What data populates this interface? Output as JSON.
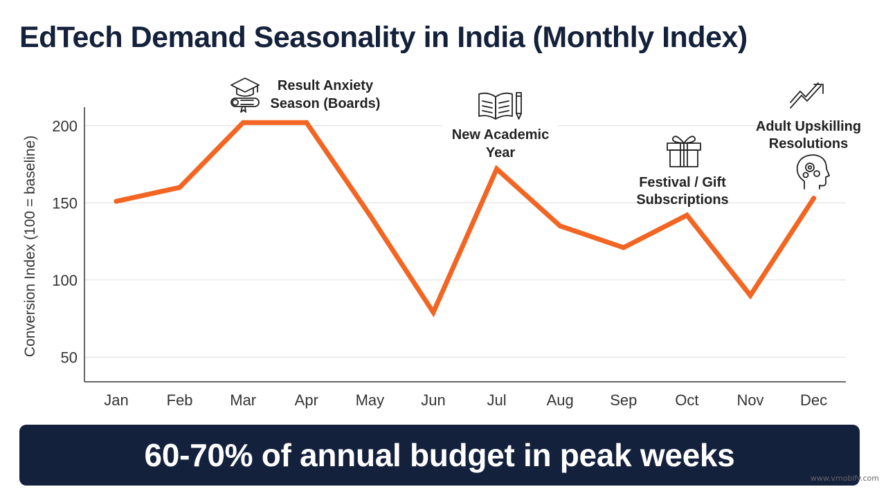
{
  "title": "EdTech Demand Seasonality in India (Monthly Index)",
  "banner": "60-70% of annual budget in peak weeks",
  "watermark": "www.vmobify.com",
  "colors": {
    "line": "#f26522",
    "title": "#14213a",
    "banner_bg": "#14213d",
    "grid": "#dddddd",
    "axis": "#333333"
  },
  "chart_data": {
    "type": "line",
    "title": "EdTech Demand Seasonality in India (Monthly Index)",
    "xlabel": "",
    "ylabel": "Conversion Index (100 = baseline)",
    "categories": [
      "Jan",
      "Feb",
      "Mar",
      "Apr",
      "May",
      "Jun",
      "Jul",
      "Aug",
      "Sep",
      "Oct",
      "Nov",
      "Dec"
    ],
    "series": [
      {
        "values": [
          151,
          160,
          202,
          202,
          142,
          79,
          172,
          135,
          121,
          142,
          90,
          153
        ]
      }
    ],
    "yticks": [
      50,
      100,
      150,
      200
    ],
    "ylim": [
      34,
      212
    ],
    "grid": true,
    "annotations": [
      {
        "lines": [
          "Result Anxiety",
          "Season (Boards)"
        ],
        "icon": "graduation-cap-diploma-icon"
      },
      {
        "lines": [
          "New Academic",
          "Year"
        ],
        "icon": "book-pencil-icon"
      },
      {
        "lines": [
          "Festival / Gift",
          "Subscriptions"
        ],
        "icon": "gift-box-icon"
      },
      {
        "lines": [
          "Adult Upskilling",
          "Resolutions"
        ],
        "icon": "head-gears-growth-icon"
      }
    ]
  }
}
